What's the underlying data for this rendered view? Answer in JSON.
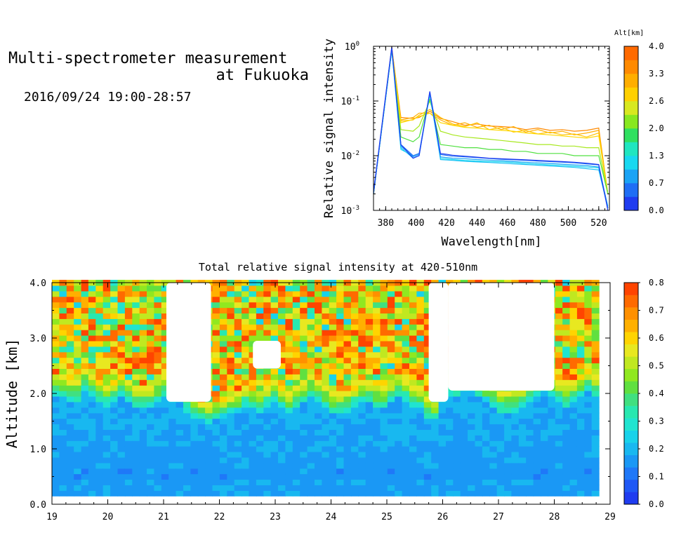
{
  "header": {
    "title_line1": "Multi-spectrometer measurement",
    "title_line2": "at Fukuoka",
    "date_range": "2016/09/24 19:00-28:57"
  },
  "chart_data": [
    {
      "type": "line",
      "xlabel": "Wavelength[nm]",
      "ylabel": "Relative signal intensity",
      "xlim": [
        372,
        527
      ],
      "ylim": [
        0.001,
        1
      ],
      "yscale": "log",
      "x_ticks": [
        "380",
        "400",
        "420",
        "440",
        "460",
        "480",
        "500",
        "520"
      ],
      "y_ticks": [
        "10^-3",
        "10^-2",
        "10^-1",
        "10^0"
      ],
      "legend_title": "Alt[km]",
      "legend_ticks": [
        "0.0",
        "0.7",
        "1.3",
        "2.0",
        "2.6",
        "3.3",
        "4.0"
      ],
      "legend_colors": [
        "#1f3cf0",
        "#1f6ef5",
        "#1aa3f5",
        "#18d8f0",
        "#20e6c0",
        "#30e060",
        "#88e820",
        "#d8e820",
        "#ffd000",
        "#ffae00",
        "#ff8a00",
        "#ff6a00"
      ],
      "x": [
        372,
        384,
        390,
        398,
        402,
        409,
        416,
        424,
        432,
        440,
        448,
        456,
        464,
        472,
        480,
        488,
        496,
        504,
        512,
        520,
        526
      ],
      "series": [
        {
          "altitude_km": 3.9,
          "color": "#ff8a00",
          "values": [
            0.002,
            0.95,
            0.05,
            0.048,
            0.05,
            0.065,
            0.048,
            0.042,
            0.036,
            0.038,
            0.035,
            0.034,
            0.033,
            0.03,
            0.032,
            0.029,
            0.03,
            0.028,
            0.029,
            0.032,
            0.002
          ]
        },
        {
          "altitude_km": 3.6,
          "color": "#ffae00",
          "values": [
            0.002,
            0.92,
            0.045,
            0.05,
            0.06,
            0.06,
            0.045,
            0.036,
            0.04,
            0.033,
            0.036,
            0.03,
            0.034,
            0.027,
            0.03,
            0.026,
            0.028,
            0.024,
            0.026,
            0.029,
            0.002
          ]
        },
        {
          "altitude_km": 3.3,
          "color": "#ffc400",
          "values": [
            0.002,
            0.9,
            0.043,
            0.045,
            0.055,
            0.07,
            0.05,
            0.038,
            0.034,
            0.04,
            0.03,
            0.033,
            0.027,
            0.029,
            0.025,
            0.027,
            0.024,
            0.025,
            0.022,
            0.026,
            0.002
          ]
        },
        {
          "altitude_km": 3.0,
          "color": "#ffd800",
          "values": [
            0.002,
            0.88,
            0.04,
            0.046,
            0.052,
            0.06,
            0.04,
            0.036,
            0.033,
            0.032,
            0.03,
            0.029,
            0.028,
            0.026,
            0.025,
            0.024,
            0.023,
            0.022,
            0.021,
            0.023,
            0.002
          ]
        },
        {
          "altitude_km": 2.6,
          "color": "#a8e820",
          "values": [
            0.002,
            0.86,
            0.03,
            0.028,
            0.035,
            0.1,
            0.028,
            0.024,
            0.022,
            0.021,
            0.02,
            0.019,
            0.018,
            0.017,
            0.016,
            0.016,
            0.015,
            0.015,
            0.014,
            0.014,
            0.002
          ]
        },
        {
          "altitude_km": 2.3,
          "color": "#50e040",
          "values": [
            0.002,
            0.85,
            0.022,
            0.018,
            0.022,
            0.11,
            0.016,
            0.015,
            0.014,
            0.014,
            0.013,
            0.013,
            0.012,
            0.012,
            0.011,
            0.011,
            0.011,
            0.01,
            0.01,
            0.01,
            0.002
          ]
        },
        {
          "altitude_km": 1.6,
          "color": "#18d8f0",
          "values": [
            0.002,
            0.85,
            0.013,
            0.01,
            0.011,
            0.13,
            0.009,
            0.0085,
            0.0082,
            0.008,
            0.0078,
            0.0077,
            0.0075,
            0.0072,
            0.007,
            0.0068,
            0.0066,
            0.0064,
            0.0062,
            0.006,
            0.0012
          ]
        },
        {
          "altitude_km": 1.3,
          "color": "#1ac0f5",
          "values": [
            0.002,
            0.87,
            0.014,
            0.009,
            0.01,
            0.14,
            0.0085,
            0.0082,
            0.0079,
            0.0077,
            0.0075,
            0.0073,
            0.0071,
            0.0069,
            0.0067,
            0.0065,
            0.0063,
            0.0061,
            0.0058,
            0.0055,
            0.0011
          ]
        },
        {
          "altitude_km": 1.0,
          "color": "#1aa3f5",
          "values": [
            0.002,
            0.9,
            0.015,
            0.0095,
            0.0105,
            0.14,
            0.0095,
            0.009,
            0.0088,
            0.0085,
            0.0083,
            0.0081,
            0.0078,
            0.0076,
            0.0074,
            0.0072,
            0.007,
            0.0068,
            0.0066,
            0.0062,
            0.0011
          ]
        },
        {
          "altitude_km": 0.7,
          "color": "#1f6ef5",
          "values": [
            0.002,
            0.93,
            0.016,
            0.01,
            0.011,
            0.145,
            0.0105,
            0.0098,
            0.0095,
            0.0092,
            0.0089,
            0.0086,
            0.0084,
            0.0082,
            0.008,
            0.0078,
            0.0076,
            0.0074,
            0.0071,
            0.0068,
            0.0011
          ]
        },
        {
          "altitude_km": 0.3,
          "color": "#1f3cf0",
          "values": [
            0.0022,
            0.98,
            0.016,
            0.009,
            0.01,
            0.15,
            0.011,
            0.0102,
            0.0098,
            0.0094,
            0.009,
            0.0088,
            0.0086,
            0.0084,
            0.0082,
            0.008,
            0.0078,
            0.0076,
            0.0073,
            0.0069,
            0.001
          ]
        }
      ]
    },
    {
      "type": "heatmap",
      "title": "Total relative signal intensity at 420-510nm",
      "xlabel": "",
      "ylabel": "Altitude [km]",
      "xlim": [
        19,
        29
      ],
      "ylim": [
        0.0,
        4.0
      ],
      "x_ticks": [
        "19",
        "20",
        "21",
        "22",
        "23",
        "24",
        "25",
        "26",
        "27",
        "28",
        "29"
      ],
      "y_ticks": [
        "0.0",
        "1.0",
        "2.0",
        "3.0",
        "4.0"
      ],
      "colorbar_ticks": [
        "0.0",
        "0.1",
        "0.2",
        "0.3",
        "0.4",
        "0.5",
        "0.6",
        "0.7",
        "0.8"
      ],
      "colorbar_colors": [
        "#1f3cf0",
        "#1f58f5",
        "#1f78f8",
        "#1a98f5",
        "#18b8f0",
        "#18d2ea",
        "#20e4d0",
        "#28e8b0",
        "#40e080",
        "#60e040",
        "#90e820",
        "#c0e820",
        "#e8e820",
        "#ffd400",
        "#ffb000",
        "#ff9000",
        "#ff6a00",
        "#ff4400"
      ],
      "cloud_top_km": [
        2.3,
        2.3,
        2.2,
        2.2,
        2.4,
        2.3,
        2.2,
        2.1,
        2.2,
        2.3,
        2.2,
        2.1,
        2.1,
        2.1,
        2.2,
        2.3,
        2.2,
        2.2,
        2.0,
        1.9,
        1.85,
        1.8,
        1.85,
        1.9,
        1.95,
        2.0,
        2.1,
        2.05,
        2.0,
        2.1,
        2.2,
        2.1,
        2.0,
        2.1,
        2.2,
        2.3,
        2.2,
        2.1,
        2.0,
        1.95,
        2.0,
        2.1,
        2.2,
        2.2,
        2.1,
        2.1,
        2.2,
        2.3,
        2.2,
        2.1,
        2.1,
        1.9,
        1.85,
        2.2,
        2.3,
        2.3,
        2.35,
        2.4,
        2.3,
        2.2,
        2.1,
        2.0,
        2.0,
        2.0,
        2.1,
        2.2,
        2.3,
        2.4,
        2.3,
        2.2,
        2.1,
        2.2,
        2.3,
        2.4,
        2.3
      ],
      "gap_regions": [
        {
          "x_start": 21.05,
          "x_end": 21.85,
          "bottom_km": 1.85,
          "top_km": 4.0
        },
        {
          "x_start": 22.6,
          "x_end": 23.1,
          "bottom_km": 2.45,
          "top_km": 2.95
        },
        {
          "x_start": 25.75,
          "x_end": 26.1,
          "bottom_km": 1.85,
          "top_km": 4.0
        },
        {
          "x_start": 26.1,
          "x_end": 28.0,
          "bottom_km": 2.05,
          "top_km": 4.0
        }
      ],
      "data_x_end": 28.8,
      "data_y_bottom_km": 0.15
    }
  ]
}
